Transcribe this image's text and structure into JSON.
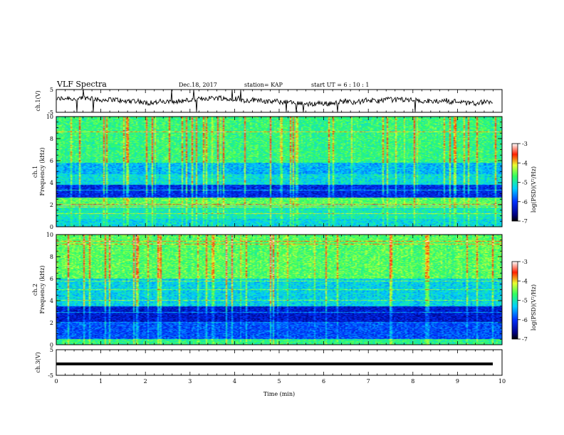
{
  "header": {
    "title": "VLF Spectra",
    "date": "Dec.18, 2017",
    "station": "station= KAP",
    "start": "start  UT =  6 : 10 : 1"
  },
  "chart_data": {
    "type": "heatmap",
    "x_axis": {
      "label": "Time  (min)",
      "range": [
        0,
        10
      ],
      "ticks": [
        "0",
        "1",
        "2",
        "3",
        "4",
        "5",
        "6",
        "7",
        "8",
        "9",
        "10"
      ]
    },
    "panels": [
      {
        "id": "ch1-waveform",
        "type": "line",
        "ylabel": "ch.1(V)",
        "ylim": [
          -5,
          5
        ],
        "yticks": [
          "5",
          "-5"
        ],
        "description_level_approx": 0
      },
      {
        "id": "ch1-spectrogram",
        "type": "heatmap",
        "ylabel_channel": "ch.1",
        "ylabel": "Frequency  (kHz)",
        "ylim": [
          0,
          10
        ],
        "yticks": [
          "0",
          "2",
          "4",
          "6",
          "8",
          "10"
        ],
        "colorbar": {
          "label": "log(PSD)(V²/Hz)",
          "range": [
            -7,
            -3
          ],
          "ticks": [
            "-3",
            "-4",
            "-5",
            "-6",
            "-7"
          ]
        }
      },
      {
        "id": "ch2-spectrogram",
        "type": "heatmap",
        "ylabel_channel": "ch.2",
        "ylabel": "Frequency  (kHz)",
        "ylim": [
          0,
          10
        ],
        "yticks": [
          "0",
          "2",
          "4",
          "6",
          "8",
          "10"
        ],
        "colorbar": {
          "label": "log(PSD)(V²/Hz)",
          "range": [
            -7,
            -3
          ],
          "ticks": [
            "-3",
            "-4",
            "-5",
            "-6",
            "-7"
          ]
        }
      },
      {
        "id": "ch3-waveform",
        "type": "line",
        "ylabel": "ch.3(V)",
        "ylim": [
          -5,
          5
        ],
        "yticks": [
          "5",
          "-5"
        ],
        "constant_level_approx": 0
      }
    ]
  },
  "colors": {
    "dark": "#000080",
    "blue": "#0020ff",
    "cyan": "#00d0ff",
    "green": "#40ff60",
    "yellow": "#e8ff30",
    "red": "#ff1010",
    "black": "#000000"
  }
}
